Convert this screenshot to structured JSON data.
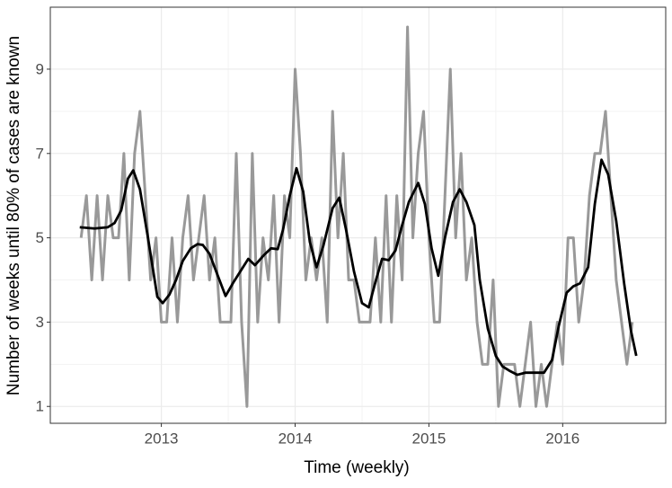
{
  "chart_data": {
    "type": "line",
    "x_label": "Time (weekly)",
    "y_label": "Number of weeks until 80% of cases are known",
    "xlim": [
      2012.17,
      2016.77
    ],
    "xticks": [
      2013,
      2014,
      2015,
      2016
    ],
    "ylim": [
      0.6,
      10.47
    ],
    "yticks": [
      1,
      3,
      5,
      7,
      9
    ],
    "grid": true,
    "series": [
      {
        "color": "#999999",
        "x": [
          2012.4,
          2012.44,
          2012.48,
          2012.52,
          2012.56,
          2012.6,
          2012.64,
          2012.68,
          2012.72,
          2012.76,
          2012.8,
          2012.84,
          2012.88,
          2012.92,
          2012.96,
          2013.0,
          2013.04,
          2013.08,
          2013.12,
          2013.16,
          2013.2,
          2013.24,
          2013.28,
          2013.32,
          2013.36,
          2013.4,
          2013.44,
          2013.48,
          2013.52,
          2013.56,
          2013.6,
          2013.64,
          2013.68,
          2013.72,
          2013.76,
          2013.8,
          2013.84,
          2013.88,
          2013.92,
          2013.96,
          2014.0,
          2014.04,
          2014.08,
          2014.12,
          2014.16,
          2014.2,
          2014.24,
          2014.28,
          2014.32,
          2014.36,
          2014.4,
          2014.44,
          2014.48,
          2014.52,
          2014.56,
          2014.6,
          2014.64,
          2014.68,
          2014.72,
          2014.76,
          2014.8,
          2014.84,
          2014.88,
          2014.92,
          2014.96,
          2015.0,
          2015.04,
          2015.08,
          2015.12,
          2015.16,
          2015.2,
          2015.24,
          2015.28,
          2015.32,
          2015.36,
          2015.4,
          2015.44,
          2015.48,
          2015.52,
          2015.56,
          2015.6,
          2015.64,
          2015.68,
          2015.72,
          2015.76,
          2015.8,
          2015.84,
          2015.88,
          2015.92,
          2015.96,
          2016.0,
          2016.04,
          2016.08,
          2016.12,
          2016.16,
          2016.2,
          2016.24,
          2016.28,
          2016.32,
          2016.36,
          2016.4,
          2016.44,
          2016.48,
          2016.52
        ],
        "values": [
          5,
          6,
          4,
          6,
          4,
          6,
          5,
          5,
          7,
          4,
          7,
          8,
          6,
          4,
          5,
          3,
          3,
          5,
          3,
          5,
          6,
          4,
          5,
          6,
          4,
          5,
          3,
          3,
          3,
          7,
          3,
          1,
          7,
          3,
          5,
          4,
          6,
          3,
          6,
          5,
          9,
          7,
          4,
          5,
          4,
          5,
          3,
          8,
          5,
          7,
          4,
          4,
          3,
          3,
          3,
          5,
          3,
          6,
          3,
          6,
          4,
          10,
          5,
          7,
          8,
          5,
          3,
          3,
          6,
          9,
          5,
          7,
          4,
          5,
          3,
          2,
          2,
          4,
          1,
          2,
          2,
          2,
          1,
          2,
          3,
          1,
          2,
          1,
          2,
          3,
          2,
          5,
          5,
          3,
          4,
          6,
          7,
          7,
          8,
          6,
          4,
          3,
          2,
          3
        ]
      },
      {
        "color": "#000000",
        "x": [
          2012.39,
          2012.5,
          2012.6,
          2012.65,
          2012.7,
          2012.75,
          2012.79,
          2012.84,
          2012.9,
          2012.97,
          2013.01,
          2013.06,
          2013.11,
          2013.16,
          2013.22,
          2013.27,
          2013.31,
          2013.36,
          2013.41,
          2013.48,
          2013.54,
          2013.6,
          2013.65,
          2013.7,
          2013.77,
          2013.82,
          2013.87,
          2013.91,
          2013.96,
          2014.01,
          2014.06,
          2014.11,
          2014.16,
          2014.21,
          2014.28,
          2014.33,
          2014.38,
          2014.44,
          2014.5,
          2014.55,
          2014.6,
          2014.65,
          2014.7,
          2014.75,
          2014.8,
          2014.85,
          2014.92,
          2014.97,
          2015.02,
          2015.07,
          2015.12,
          2015.18,
          2015.23,
          2015.28,
          2015.34,
          2015.38,
          2015.44,
          2015.5,
          2015.55,
          2015.6,
          2015.66,
          2015.72,
          2015.78,
          2015.86,
          2015.92,
          2015.97,
          2016.03,
          2016.08,
          2016.13,
          2016.19,
          2016.24,
          2016.29,
          2016.34,
          2016.4,
          2016.46,
          2016.51,
          2016.55
        ],
        "values": [
          5.25,
          5.22,
          5.25,
          5.35,
          5.65,
          6.4,
          6.6,
          6.15,
          5.0,
          3.6,
          3.45,
          3.65,
          4.0,
          4.45,
          4.75,
          4.85,
          4.83,
          4.62,
          4.2,
          3.62,
          3.95,
          4.25,
          4.5,
          4.35,
          4.6,
          4.75,
          4.73,
          5.2,
          6.0,
          6.65,
          6.1,
          4.9,
          4.3,
          4.8,
          5.7,
          5.95,
          5.2,
          4.2,
          3.45,
          3.35,
          3.95,
          4.5,
          4.47,
          4.7,
          5.3,
          5.85,
          6.3,
          5.8,
          4.75,
          4.1,
          5.0,
          5.85,
          6.15,
          5.85,
          5.3,
          4.0,
          2.85,
          2.2,
          1.95,
          1.85,
          1.75,
          1.8,
          1.8,
          1.8,
          2.1,
          2.9,
          3.7,
          3.85,
          3.92,
          4.3,
          5.8,
          6.85,
          6.5,
          5.4,
          3.9,
          2.8,
          2.2
        ]
      }
    ]
  }
}
